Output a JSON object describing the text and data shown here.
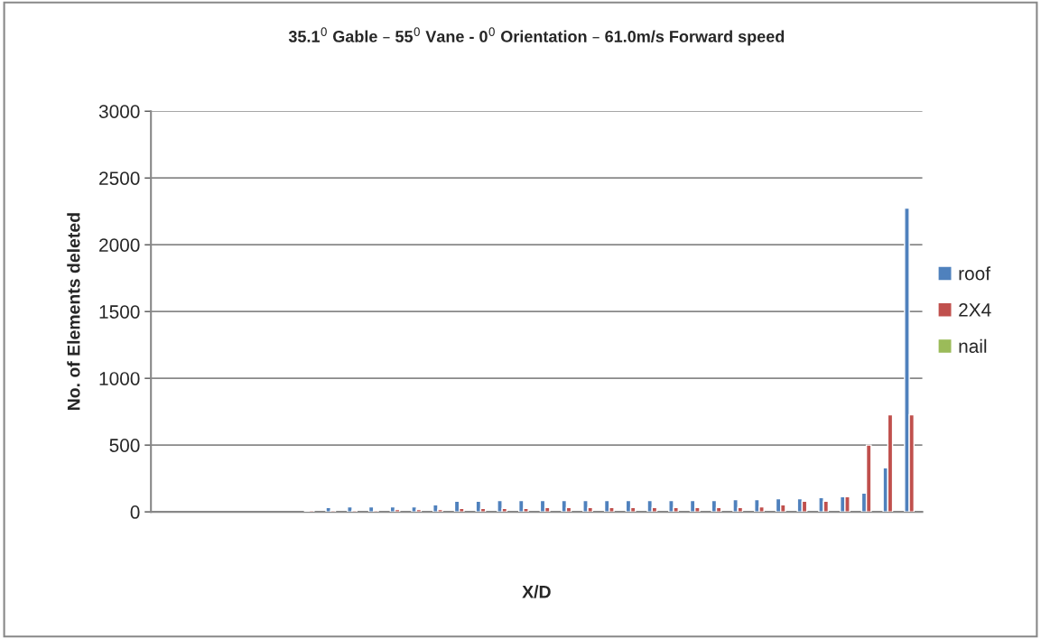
{
  "chart_data": {
    "type": "bar",
    "title": "35.1$^{0}$ Gable – 55$^{0}$ Vane - 0$^{0}$ Orientation – 61.0m/s Forward speed",
    "xlabel": "X/D",
    "ylabel": "No. of Elements deleted",
    "categories": [
      null,
      null,
      null,
      null,
      null,
      null,
      null,
      null,
      null,
      null,
      null,
      null,
      null,
      null,
      null,
      null,
      null,
      null,
      null,
      null,
      null,
      null,
      null,
      null,
      null,
      null,
      null,
      null,
      null,
      null,
      null,
      null,
      null,
      null,
      null,
      null
    ],
    "series": [
      {
        "name": "roof",
        "color": "#4f81bd",
        "values": [
          null,
          null,
          null,
          null,
          null,
          null,
          null,
          3,
          32,
          38,
          38,
          38,
          38,
          52,
          79,
          79,
          85,
          85,
          85,
          85,
          85,
          85,
          85,
          85,
          85,
          85,
          85,
          92,
          92,
          99,
          99,
          106,
          113,
          140,
          329,
          2275
        ]
      },
      {
        "name": "2X4",
        "color": "#c0504d",
        "values": [
          null,
          null,
          null,
          null,
          null,
          null,
          null,
          10,
          11,
          11,
          11,
          18,
          18,
          18,
          25,
          25,
          25,
          25,
          32,
          32,
          32,
          32,
          32,
          32,
          32,
          32,
          32,
          32,
          38,
          52,
          79,
          79,
          113,
          500,
          727,
          727
        ]
      },
      {
        "name": "nail",
        "color": "#9bbb59",
        "values": [
          null,
          null,
          null,
          null,
          null,
          null,
          null,
          null,
          null,
          null,
          null,
          null,
          null,
          null,
          null,
          null,
          null,
          null,
          null,
          null,
          null,
          null,
          null,
          null,
          null,
          null,
          null,
          null,
          null,
          null,
          null,
          null,
          null,
          null,
          null,
          null
        ]
      }
    ],
    "ylim": [
      0,
      3000
    ],
    "yticks": [
      0,
      500,
      1000,
      1500,
      2000,
      2500,
      3000
    ],
    "grid": "y",
    "legend": "right"
  }
}
